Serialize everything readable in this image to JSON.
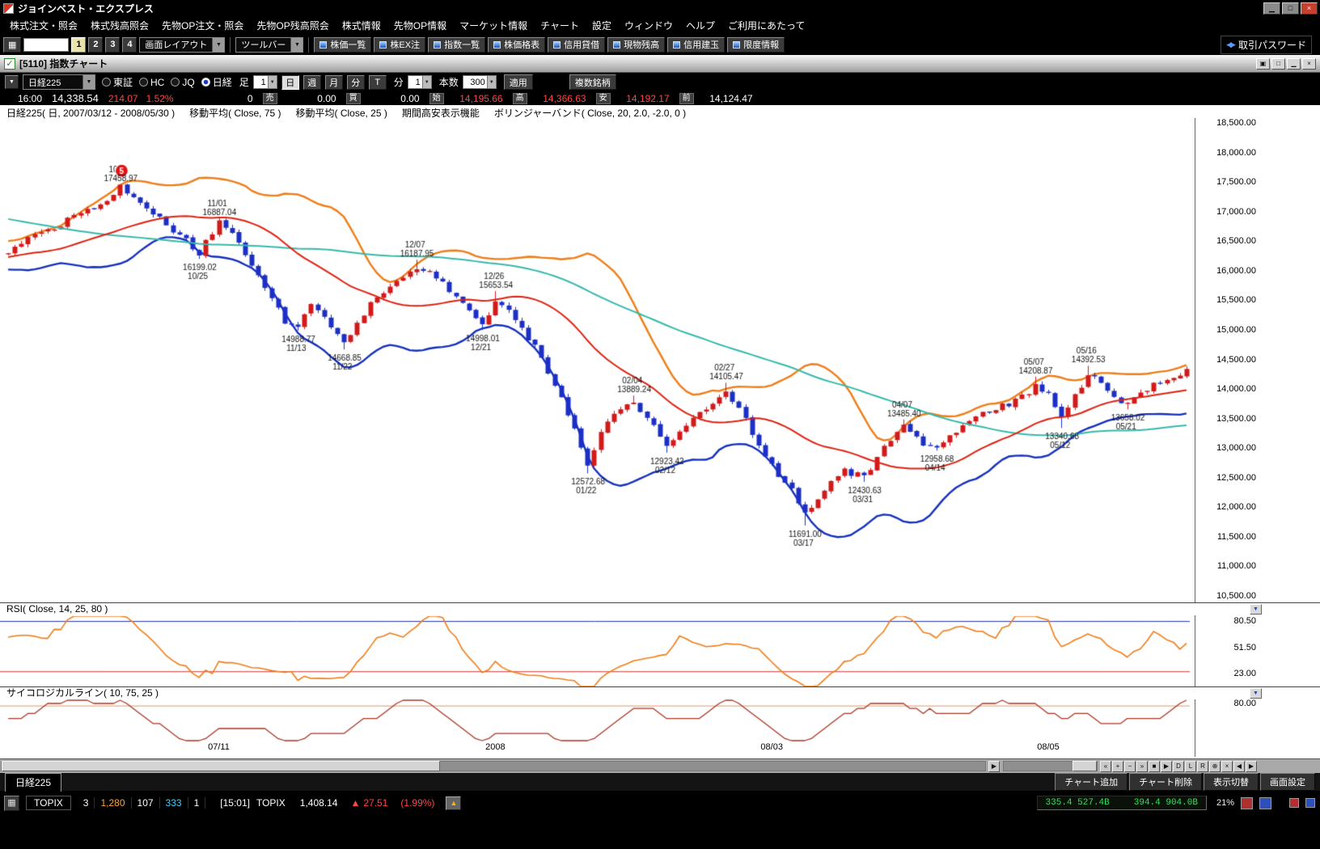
{
  "app": {
    "title": "ジョインベスト・エクスプレス",
    "window_buttons": [
      {
        "name": "minimize-button",
        "glyph": "▁"
      },
      {
        "name": "maximize-button",
        "glyph": "□"
      },
      {
        "name": "close-button",
        "glyph": "×"
      }
    ]
  },
  "menu": {
    "items": [
      "株式注文・照会",
      "株式残高照会",
      "先物OP注文・照会",
      "先物OP残高照会",
      "株式情報",
      "先物OP情報",
      "マーケット情報",
      "チャート",
      "設定",
      "ウィンドウ",
      "ヘルプ",
      "ご利用にあたって"
    ]
  },
  "toolbar": {
    "preset_buttons": [
      "1",
      "2",
      "3",
      "4"
    ],
    "active_preset": "1",
    "layout_combo": "画面レイアウト",
    "toolbar_combo": "ツールバー",
    "buttons": [
      "株価一覧",
      "株EX注",
      "指数一覧",
      "株価格表",
      "信用貸借",
      "現物残高",
      "信用建玉",
      "限度情報"
    ],
    "password_label": "取引パスワード"
  },
  "chart_window": {
    "title": "[5110] 指数チャート",
    "window_buttons": [
      {
        "name": "child-cascade-button",
        "glyph": "▣"
      },
      {
        "name": "child-restore-button",
        "glyph": "□"
      },
      {
        "name": "child-minimize-button",
        "glyph": "▁"
      },
      {
        "name": "child-close-button",
        "glyph": "×"
      }
    ],
    "symbol_combo": "日経225",
    "markets": [
      "東証",
      "HC",
      "JQ",
      "日経"
    ],
    "selected_market": "日経",
    "ashi_label": "足",
    "ashi_value": "1",
    "period_buttons": [
      "日",
      "週",
      "月",
      "分",
      "T"
    ],
    "active_period": "日",
    "min_label": "分",
    "min_value": "1",
    "bars_label": "本数",
    "bars_value": "300",
    "apply_button": "適用",
    "multi_button": "複数銘柄"
  },
  "quote": {
    "time": "16:00",
    "price": "14,338.54",
    "change": "214.07",
    "change_pct": "1.52%",
    "volume": "0",
    "fields": [
      {
        "label": "売",
        "value": "0.00",
        "color": "white"
      },
      {
        "label": "買",
        "value": "0.00",
        "color": "white"
      },
      {
        "label": "始",
        "value": "14,195.66",
        "color": "red"
      },
      {
        "label": "高",
        "value": "14,366.63",
        "color": "red"
      },
      {
        "label": "安",
        "value": "14,192.17",
        "color": "red"
      },
      {
        "label": "前",
        "value": "14,124.47",
        "color": "white"
      }
    ]
  },
  "chart_data": {
    "type": "candlestick",
    "title": "日経225( 日, 2007/03/12 - 2008/05/30 )",
    "legend": [
      "移動平均( Close, 75 )",
      "移動平均( Close, 25 )",
      "期間高安表示機能",
      "ボリンジャーバンド( Close, 20, 2.0, -2.0, 0 )"
    ],
    "y_ticks": [
      "18,500.00",
      "18,000.00",
      "17,500.00",
      "17,000.00",
      "16,500.00",
      "16,000.00",
      "15,500.00",
      "15,000.00",
      "14,500.00",
      "14,000.00",
      "13,500.00",
      "13,000.00",
      "12,500.00",
      "12,000.00",
      "11,500.00",
      "11,000.00",
      "10,500.00"
    ],
    "y_max": 18500,
    "y_min": 10500,
    "y_step": 500,
    "bars_visible": 180,
    "x_labels": [
      {
        "bar": 32,
        "label": "07/11"
      },
      {
        "bar": 74,
        "label": "2008"
      },
      {
        "bar": 116,
        "label": "08/03"
      },
      {
        "bar": 158,
        "label": "08/05"
      }
    ],
    "close_anchors": [
      [
        -75,
        17900
      ],
      [
        -65,
        18250
      ],
      [
        -58,
        18150
      ],
      [
        -48,
        17400
      ],
      [
        -42,
        16900
      ],
      [
        -36,
        16200
      ],
      [
        -30,
        15400
      ],
      [
        -26,
        15700
      ],
      [
        -20,
        16300
      ],
      [
        -14,
        16000
      ],
      [
        -8,
        16450
      ],
      [
        -4,
        16250
      ],
      [
        0,
        16350
      ],
      [
        4,
        16600
      ],
      [
        9,
        16850
      ],
      [
        14,
        17150
      ],
      [
        17,
        17400
      ],
      [
        20,
        17200
      ],
      [
        23,
        16900
      ],
      [
        26,
        16600
      ],
      [
        29,
        16300
      ],
      [
        32,
        16820
      ],
      [
        34,
        16600
      ],
      [
        37,
        16100
      ],
      [
        40,
        15550
      ],
      [
        42,
        15150
      ],
      [
        44,
        15060
      ],
      [
        46,
        15450
      ],
      [
        48,
        15250
      ],
      [
        51,
        14750
      ],
      [
        53,
        15150
      ],
      [
        56,
        15550
      ],
      [
        59,
        15850
      ],
      [
        62,
        16050
      ],
      [
        65,
        15900
      ],
      [
        68,
        15550
      ],
      [
        71,
        15150
      ],
      [
        72,
        15060
      ],
      [
        74,
        15480
      ],
      [
        76,
        15300
      ],
      [
        78,
        15000
      ],
      [
        80,
        14700
      ],
      [
        82,
        14300
      ],
      [
        84,
        13850
      ],
      [
        86,
        13300
      ],
      [
        88,
        12750
      ],
      [
        90,
        13250
      ],
      [
        92,
        13550
      ],
      [
        95,
        13780
      ],
      [
        98,
        13350
      ],
      [
        100,
        13050
      ],
      [
        103,
        13400
      ],
      [
        106,
        13650
      ],
      [
        109,
        13950
      ],
      [
        112,
        13500
      ],
      [
        114,
        13000
      ],
      [
        116,
        12700
      ],
      [
        119,
        12300
      ],
      [
        121,
        11870
      ],
      [
        124,
        12300
      ],
      [
        127,
        12600
      ],
      [
        130,
        12520
      ],
      [
        133,
        13000
      ],
      [
        136,
        13350
      ],
      [
        139,
        13050
      ],
      [
        141,
        13050
      ],
      [
        144,
        13300
      ],
      [
        147,
        13550
      ],
      [
        150,
        13650
      ],
      [
        153,
        13800
      ],
      [
        156,
        14050
      ],
      [
        158,
        13900
      ],
      [
        160,
        13500
      ],
      [
        162,
        13900
      ],
      [
        164,
        14250
      ],
      [
        166,
        14150
      ],
      [
        168,
        13900
      ],
      [
        170,
        13720
      ],
      [
        172,
        13900
      ],
      [
        174,
        14050
      ],
      [
        176,
        14150
      ],
      [
        179,
        14338.54
      ]
    ],
    "annotations": [
      {
        "bar": 17,
        "date": "10/11",
        "value": "17458.97",
        "kind": "high",
        "marker": "5"
      },
      {
        "bar": 29,
        "date": "10/25",
        "value": "16199.02",
        "kind": "low"
      },
      {
        "bar": 32,
        "date": "11/01",
        "value": "16887.04",
        "kind": "high"
      },
      {
        "bar": 44,
        "date": "11/13",
        "value": "14988.77",
        "kind": "low"
      },
      {
        "bar": 51,
        "date": "11/22",
        "value": "14668.85",
        "kind": "low"
      },
      {
        "bar": 62,
        "date": "12/07",
        "value": "16187.95",
        "kind": "high"
      },
      {
        "bar": 72,
        "date": "12/21",
        "value": "14998.01",
        "kind": "low"
      },
      {
        "bar": 74,
        "date": "12/26",
        "value": "15653.54",
        "kind": "high"
      },
      {
        "bar": 88,
        "date": "01/22",
        "value": "12572.68",
        "kind": "low"
      },
      {
        "bar": 95,
        "date": "02/04",
        "value": "13889.24",
        "kind": "high"
      },
      {
        "bar": 100,
        "date": "02/12",
        "value": "12923.42",
        "kind": "low"
      },
      {
        "bar": 109,
        "date": "02/27",
        "value": "14105.47",
        "kind": "high"
      },
      {
        "bar": 121,
        "date": "03/17",
        "value": "11691.00",
        "kind": "low"
      },
      {
        "bar": 130,
        "date": "03/31",
        "value": "12430.63",
        "kind": "low"
      },
      {
        "bar": 136,
        "date": "04/07",
        "value": "13485.40",
        "kind": "high"
      },
      {
        "bar": 141,
        "date": "04/14",
        "value": "12958.68",
        "kind": "low"
      },
      {
        "bar": 156,
        "date": "05/07",
        "value": "14208.87",
        "kind": "high"
      },
      {
        "bar": 160,
        "date": "05/12",
        "value": "13340.68",
        "kind": "low"
      },
      {
        "bar": 164,
        "date": "05/16",
        "value": "14392.53",
        "kind": "high"
      },
      {
        "bar": 170,
        "date": "05/21",
        "value": "13658.02",
        "kind": "low"
      }
    ],
    "colors": {
      "up": "#d11a1a",
      "down": "#1c2fc4",
      "ma25": "#dd2211",
      "ma75": "#36b8ac",
      "bb_up": "#ee7d18",
      "bb_dn": "#1530bd",
      "rsi": "#ee7d18",
      "psych": "#aa3322"
    },
    "rsi": {
      "label": "RSI( Close, 14, 25, 80 )",
      "ticks": [
        "80.50",
        "51.50",
        "23.00"
      ],
      "upper": 80,
      "lower": 25
    },
    "psych": {
      "label": "サイコロジカルライン( 10, 75, 25 )",
      "ticks": [
        "80.00"
      ],
      "upper": 75,
      "lower": 25
    }
  },
  "chart_scrollbar": {
    "buttons": [
      "«",
      "+",
      "−",
      "»",
      "■",
      "▶",
      "D",
      "L",
      "R",
      "⊕",
      "×",
      "◀",
      "▶"
    ]
  },
  "bottom": {
    "tab": "日経225",
    "buttons": [
      "チャート追加",
      "チャート削除",
      "表示切替",
      "画面設定"
    ]
  },
  "status": {
    "index_name": "TOPIX",
    "counts": [
      {
        "text": "3",
        "color": "#ffffff"
      },
      {
        "text": "1,280",
        "color": "#ffa133"
      },
      {
        "text": "107",
        "color": "#ffffff"
      },
      {
        "text": "333",
        "color": "#44ccff"
      },
      {
        "text": "1",
        "color": "#ffffff"
      }
    ],
    "time": "[15:01]",
    "name": "TOPIX",
    "value": "1,408.14",
    "change": "27.51",
    "change_pct": "(1.99%)",
    "ticker_left": "335.4 527.4B",
    "ticker_right": "394.4 904.0B",
    "percent": "21%"
  }
}
